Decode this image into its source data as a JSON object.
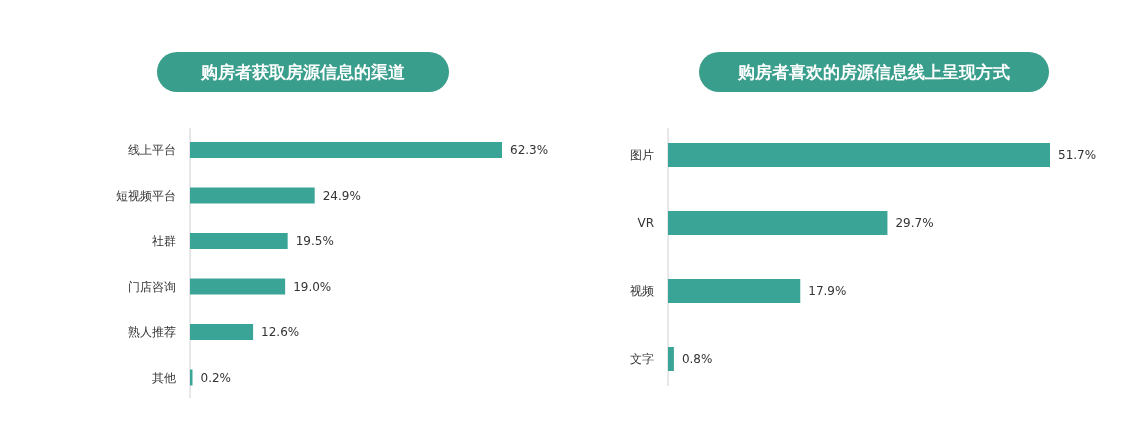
{
  "chart_data": [
    {
      "type": "bar",
      "orientation": "horizontal",
      "title": "购房者获取房源信息的渠道",
      "categories": [
        "线上平台",
        "短视频平台",
        "社群",
        "门店咨询",
        "熟人推荐",
        "其他"
      ],
      "values": [
        62.3,
        24.9,
        19.5,
        19.0,
        12.6,
        0.2
      ],
      "value_labels": [
        "62.3%",
        "24.9%",
        "19.5%",
        "19.0%",
        "12.6%",
        "0.2%"
      ],
      "color": "#3aa596"
    },
    {
      "type": "bar",
      "orientation": "horizontal",
      "title": "购房者喜欢的房源信息线上呈现方式",
      "categories": [
        "图片",
        "VR",
        "视频",
        "文字"
      ],
      "values": [
        51.7,
        29.7,
        17.9,
        0.8
      ],
      "value_labels": [
        "51.7%",
        "29.7%",
        "17.9%",
        "0.8%"
      ],
      "color": "#3aa596"
    }
  ]
}
